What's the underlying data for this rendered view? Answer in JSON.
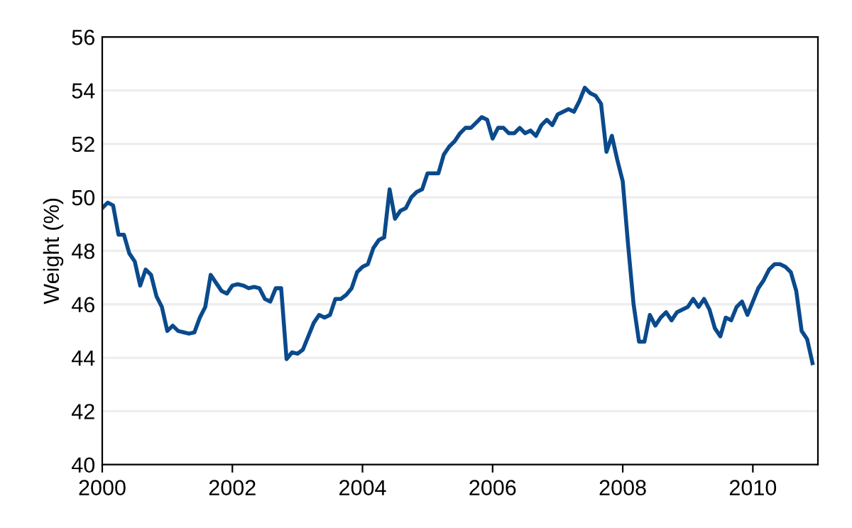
{
  "chart_data": {
    "type": "line",
    "ylabel": "Weight (%)",
    "x": [
      "2000-01",
      "2000-02",
      "2000-03",
      "2000-04",
      "2000-05",
      "2000-06",
      "2000-07",
      "2000-08",
      "2000-09",
      "2000-10",
      "2000-11",
      "2000-12",
      "2001-01",
      "2001-02",
      "2001-03",
      "2001-04",
      "2001-05",
      "2001-06",
      "2001-07",
      "2001-08",
      "2001-09",
      "2001-10",
      "2001-11",
      "2001-12",
      "2002-01",
      "2002-02",
      "2002-03",
      "2002-04",
      "2002-05",
      "2002-06",
      "2002-07",
      "2002-08",
      "2002-09",
      "2002-10",
      "2002-11",
      "2002-12",
      "2003-01",
      "2003-02",
      "2003-03",
      "2003-04",
      "2003-05",
      "2003-06",
      "2003-07",
      "2003-08",
      "2003-09",
      "2003-10",
      "2003-11",
      "2003-12",
      "2004-01",
      "2004-02",
      "2004-03",
      "2004-04",
      "2004-05",
      "2004-06",
      "2004-07",
      "2004-08",
      "2004-09",
      "2004-10",
      "2004-11",
      "2004-12",
      "2005-01",
      "2005-02",
      "2005-03",
      "2005-04",
      "2005-05",
      "2005-06",
      "2005-07",
      "2005-08",
      "2005-09",
      "2005-10",
      "2005-11",
      "2005-12",
      "2006-01",
      "2006-02",
      "2006-03",
      "2006-04",
      "2006-05",
      "2006-06",
      "2006-07",
      "2006-08",
      "2006-09",
      "2006-10",
      "2006-11",
      "2006-12",
      "2007-01",
      "2007-02",
      "2007-03",
      "2007-04",
      "2007-05",
      "2007-06",
      "2007-07",
      "2007-08",
      "2007-09",
      "2007-10",
      "2007-11",
      "2007-12",
      "2008-01",
      "2008-02",
      "2008-03",
      "2008-04",
      "2008-05",
      "2008-06",
      "2008-07",
      "2008-08",
      "2008-09",
      "2008-10",
      "2008-11",
      "2008-12",
      "2009-01",
      "2009-02",
      "2009-03",
      "2009-04",
      "2009-05",
      "2009-06",
      "2009-07",
      "2009-08",
      "2009-09",
      "2009-10",
      "2009-11",
      "2009-12",
      "2010-01",
      "2010-02",
      "2010-03",
      "2010-04",
      "2010-05",
      "2010-06",
      "2010-07",
      "2010-08",
      "2010-09",
      "2010-10",
      "2010-11",
      "2010-12"
    ],
    "series": [
      {
        "color": "#0a4a8c",
        "values": [
          49.6,
          49.8,
          49.7,
          48.6,
          48.6,
          47.9,
          47.6,
          46.7,
          47.3,
          47.1,
          46.3,
          45.9,
          45.0,
          45.2,
          45.0,
          44.95,
          44.9,
          44.95,
          45.5,
          45.9,
          47.1,
          46.8,
          46.5,
          46.4,
          46.7,
          46.75,
          46.7,
          46.6,
          46.65,
          46.6,
          46.2,
          46.1,
          46.6,
          46.6,
          43.95,
          44.2,
          44.15,
          44.3,
          44.8,
          45.3,
          45.6,
          45.5,
          45.6,
          46.2,
          46.2,
          46.35,
          46.6,
          47.2,
          47.4,
          47.5,
          48.1,
          48.4,
          48.5,
          50.3,
          49.2,
          49.5,
          49.6,
          50.0,
          50.2,
          50.3,
          50.9,
          50.9,
          50.9,
          51.6,
          51.9,
          52.1,
          52.4,
          52.6,
          52.6,
          52.8,
          53.0,
          52.9,
          52.2,
          52.6,
          52.6,
          52.4,
          52.4,
          52.6,
          52.4,
          52.5,
          52.3,
          52.7,
          52.9,
          52.7,
          53.1,
          53.2,
          53.3,
          53.2,
          53.6,
          54.1,
          53.9,
          53.8,
          53.5,
          51.7,
          52.3,
          51.4,
          50.6,
          48.2,
          46.0,
          44.6,
          44.6,
          45.6,
          45.2,
          45.5,
          45.7,
          45.4,
          45.7,
          45.8,
          45.9,
          46.2,
          45.9,
          46.2,
          45.8,
          45.1,
          44.8,
          45.5,
          45.4,
          45.9,
          46.1,
          45.6,
          46.1,
          46.6,
          46.9,
          47.3,
          47.5,
          47.5,
          47.4,
          47.2,
          46.5,
          45.0,
          44.7,
          43.8
        ]
      }
    ],
    "xlim": [
      "2000-01",
      "2011-01"
    ],
    "xticks": [
      {
        "value": "2000-01",
        "label": "2000"
      },
      {
        "value": "2002-01",
        "label": "2002"
      },
      {
        "value": "2004-01",
        "label": "2004"
      },
      {
        "value": "2006-01",
        "label": "2006"
      },
      {
        "value": "2008-01",
        "label": "2008"
      },
      {
        "value": "2010-01",
        "label": "2010"
      }
    ],
    "ylim": [
      40,
      56
    ],
    "yticks": [
      40,
      42,
      44,
      46,
      48,
      50,
      52,
      54,
      56
    ],
    "grid": "y",
    "marker": "none",
    "line_style": "solid"
  }
}
